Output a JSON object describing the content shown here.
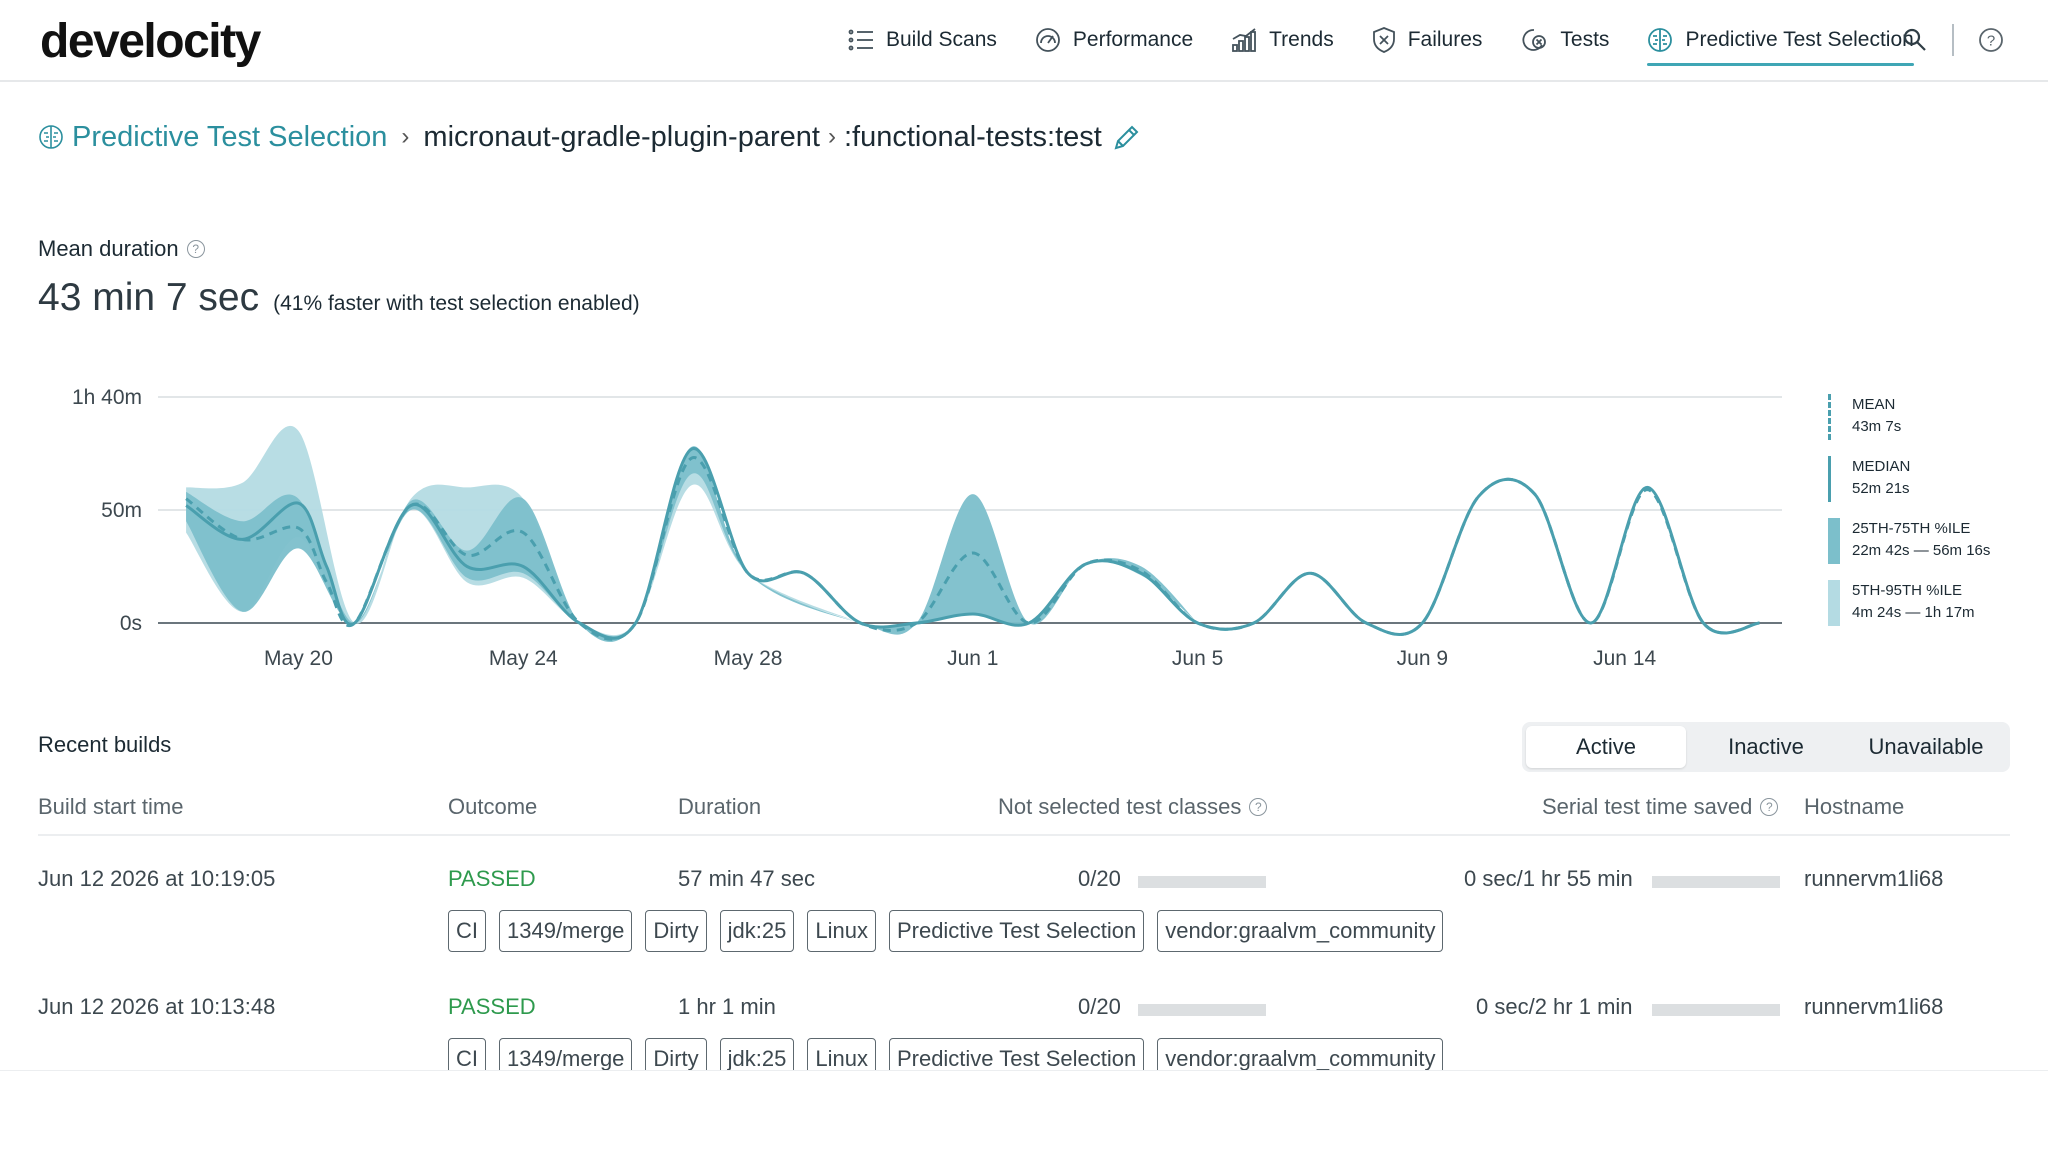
{
  "app": {
    "logo": "develocity"
  },
  "nav": {
    "items": [
      {
        "label": "Build Scans",
        "icon": "list-icon"
      },
      {
        "label": "Performance",
        "icon": "gauge-icon"
      },
      {
        "label": "Trends",
        "icon": "chart-icon"
      },
      {
        "label": "Failures",
        "icon": "shield-x-icon"
      },
      {
        "label": "Tests",
        "icon": "tests-icon"
      },
      {
        "label": "Predictive Test Selection",
        "icon": "brain-icon",
        "active": true
      }
    ],
    "search_icon": "search-icon",
    "help_icon": "help-icon",
    "accent": "#3fa6b5"
  },
  "breadcrumb": {
    "root": "Predictive Test Selection",
    "sep": "›",
    "project": "micronaut-gradle-plugin-parent",
    "task": ":functional-tests:test"
  },
  "summary": {
    "label": "Mean duration",
    "value": "43 min 7 sec",
    "note": "(41% faster with test selection enabled)"
  },
  "chart_data": {
    "type": "area",
    "y_ticks": [
      "0s",
      "50m",
      "1h 40m"
    ],
    "ylim_minutes": [
      0,
      100
    ],
    "x_ticks": [
      "May 20",
      "May 24",
      "May 28",
      "Jun 1",
      "Jun 5",
      "Jun 9",
      "Jun 14"
    ],
    "grid": true,
    "legend_position": "right",
    "series": [
      {
        "name": "MEAN",
        "value": "43m 7s",
        "style": "dashed",
        "color": "#4a9fae",
        "values": [
          {
            "d": 18.0,
            "y": 55
          },
          {
            "d": 19.0,
            "y": 37
          },
          {
            "d": 20.0,
            "y": 42
          },
          {
            "d": 20.5,
            "y": 18
          },
          {
            "d": 21.0,
            "y": 0
          },
          {
            "d": 22.0,
            "y": 52
          },
          {
            "d": 23.0,
            "y": 30
          },
          {
            "d": 24.0,
            "y": 40
          },
          {
            "d": 25.0,
            "y": 0
          },
          {
            "d": 26.0,
            "y": 0
          },
          {
            "d": 27.0,
            "y": 73
          },
          {
            "d": 28.0,
            "y": 22
          },
          {
            "d": 29.0,
            "y": 22
          },
          {
            "d": 30.0,
            "y": 0
          },
          {
            "d": 31.0,
            "y": 0
          },
          {
            "d": 32.0,
            "y": 31
          },
          {
            "d": 33.0,
            "y": 0
          },
          {
            "d": 34.0,
            "y": 26
          },
          {
            "d": 35.0,
            "y": 23
          },
          {
            "d": 36.0,
            "y": 0
          },
          {
            "d": 37.0,
            "y": 0
          },
          {
            "d": 38.0,
            "y": 22
          },
          {
            "d": 39.0,
            "y": 0
          },
          {
            "d": 40.0,
            "y": 0
          },
          {
            "d": 41.0,
            "y": 56
          },
          {
            "d": 42.0,
            "y": 57
          },
          {
            "d": 43.0,
            "y": 0
          },
          {
            "d": 44.0,
            "y": 59
          },
          {
            "d": 45.0,
            "y": 0
          },
          {
            "d": 46.0,
            "y": 0
          }
        ]
      },
      {
        "name": "MEDIAN",
        "value": "52m 21s",
        "style": "solid",
        "color": "#4a9fae",
        "values": [
          {
            "d": 18.0,
            "y": 52
          },
          {
            "d": 19.0,
            "y": 37
          },
          {
            "d": 20.0,
            "y": 53
          },
          {
            "d": 20.5,
            "y": 25
          },
          {
            "d": 21.0,
            "y": 0
          },
          {
            "d": 22.0,
            "y": 52
          },
          {
            "d": 23.0,
            "y": 25
          },
          {
            "d": 24.0,
            "y": 25
          },
          {
            "d": 25.0,
            "y": 0
          },
          {
            "d": 26.0,
            "y": 0
          },
          {
            "d": 27.0,
            "y": 77
          },
          {
            "d": 28.0,
            "y": 22
          },
          {
            "d": 29.0,
            "y": 22
          },
          {
            "d": 30.0,
            "y": 0
          },
          {
            "d": 31.0,
            "y": 0
          },
          {
            "d": 32.0,
            "y": 4
          },
          {
            "d": 33.0,
            "y": 0
          },
          {
            "d": 34.0,
            "y": 26
          },
          {
            "d": 35.0,
            "y": 22
          },
          {
            "d": 36.0,
            "y": 0
          },
          {
            "d": 37.0,
            "y": 0
          },
          {
            "d": 38.0,
            "y": 22
          },
          {
            "d": 39.0,
            "y": 0
          },
          {
            "d": 40.0,
            "y": 0
          },
          {
            "d": 41.0,
            "y": 56
          },
          {
            "d": 42.0,
            "y": 57
          },
          {
            "d": 43.0,
            "y": 0
          },
          {
            "d": 44.0,
            "y": 60
          },
          {
            "d": 45.0,
            "y": 0
          },
          {
            "d": 46.0,
            "y": 0
          }
        ]
      }
    ],
    "bands": [
      {
        "name": "25TH-75TH %ILE",
        "value": "22m 42s — 56m 16s",
        "color": "#7cbfcb",
        "low": [
          {
            "d": 18.0,
            "y": 45
          },
          {
            "d": 19.0,
            "y": 5
          },
          {
            "d": 20.0,
            "y": 33
          },
          {
            "d": 21.0,
            "y": 0
          },
          {
            "d": 22.0,
            "y": 50
          },
          {
            "d": 23.0,
            "y": 20
          },
          {
            "d": 24.0,
            "y": 22
          },
          {
            "d": 25.0,
            "y": 0
          },
          {
            "d": 26.0,
            "y": 0
          },
          {
            "d": 27.0,
            "y": 66
          },
          {
            "d": 28.0,
            "y": 22
          },
          {
            "d": 30.0,
            "y": 0
          },
          {
            "d": 31.0,
            "y": 0
          },
          {
            "d": 32.0,
            "y": 4
          },
          {
            "d": 33.0,
            "y": 0
          },
          {
            "d": 34.0,
            "y": 26
          },
          {
            "d": 35.0,
            "y": 21
          },
          {
            "d": 36.0,
            "y": 0
          }
        ],
        "high": [
          {
            "d": 18.0,
            "y": 58
          },
          {
            "d": 19.0,
            "y": 45
          },
          {
            "d": 20.0,
            "y": 55
          },
          {
            "d": 21.0,
            "y": 0
          },
          {
            "d": 22.0,
            "y": 54
          },
          {
            "d": 23.0,
            "y": 32
          },
          {
            "d": 24.0,
            "y": 55
          },
          {
            "d": 25.0,
            "y": 0
          },
          {
            "d": 26.0,
            "y": 0
          },
          {
            "d": 27.0,
            "y": 78
          },
          {
            "d": 28.0,
            "y": 22
          },
          {
            "d": 30.0,
            "y": 0
          },
          {
            "d": 31.0,
            "y": 0
          },
          {
            "d": 32.0,
            "y": 57
          },
          {
            "d": 33.0,
            "y": 0
          },
          {
            "d": 34.0,
            "y": 26
          },
          {
            "d": 35.0,
            "y": 25
          },
          {
            "d": 36.0,
            "y": 0
          }
        ]
      },
      {
        "name": "5TH-95TH %ILE",
        "value": "4m 24s — 1h 17m",
        "color": "#b4dbe3",
        "low": [
          {
            "d": 18.0,
            "y": 40
          },
          {
            "d": 19.0,
            "y": 5
          },
          {
            "d": 20.0,
            "y": 38
          },
          {
            "d": 21.0,
            "y": 0
          },
          {
            "d": 22.0,
            "y": 50
          },
          {
            "d": 23.0,
            "y": 18
          },
          {
            "d": 24.0,
            "y": 20
          },
          {
            "d": 25.0,
            "y": 0
          },
          {
            "d": 26.0,
            "y": 0
          },
          {
            "d": 27.0,
            "y": 61
          },
          {
            "d": 28.0,
            "y": 22
          },
          {
            "d": 30.0,
            "y": 0
          }
        ],
        "high": [
          {
            "d": 18.0,
            "y": 60
          },
          {
            "d": 19.0,
            "y": 62
          },
          {
            "d": 20.0,
            "y": 85
          },
          {
            "d": 21.0,
            "y": 0
          },
          {
            "d": 22.0,
            "y": 55
          },
          {
            "d": 23.0,
            "y": 60
          },
          {
            "d": 24.0,
            "y": 55
          },
          {
            "d": 25.0,
            "y": 0
          },
          {
            "d": 26.0,
            "y": 0
          },
          {
            "d": 27.0,
            "y": 78
          },
          {
            "d": 28.0,
            "y": 22
          },
          {
            "d": 30.0,
            "y": 0
          }
        ]
      }
    ]
  },
  "recent": {
    "title": "Recent builds",
    "filters": [
      "Active",
      "Inactive",
      "Unavailable"
    ],
    "active_filter": "Active",
    "columns": [
      "Build start time",
      "Outcome",
      "Duration",
      "Not selected test classes",
      "Serial test time saved",
      "Hostname"
    ],
    "rows": [
      {
        "start": "Jun 12 2026 at 10:19:05",
        "outcome": "PASSED",
        "duration": "57 min 47 sec",
        "not_selected": "0/20",
        "not_selected_progress": 0,
        "saved": "0 sec/1 hr 55 min",
        "saved_progress": 0,
        "hostname": "runnervm1li68",
        "tags": [
          "CI",
          "1349/merge",
          "Dirty",
          "jdk:25",
          "Linux",
          "Predictive Test Selection",
          "vendor:graalvm_community"
        ]
      },
      {
        "start": "Jun 12 2026 at 10:13:48",
        "outcome": "PASSED",
        "duration": "1 hr 1 min",
        "not_selected": "0/20",
        "not_selected_progress": 0,
        "saved": "0 sec/2 hr 1 min",
        "saved_progress": 0,
        "hostname": "runnervm1li68",
        "tags": [
          "CI",
          "1349/merge",
          "Dirty",
          "jdk:25",
          "Linux",
          "Predictive Test Selection",
          "vendor:graalvm_community"
        ]
      }
    ]
  }
}
